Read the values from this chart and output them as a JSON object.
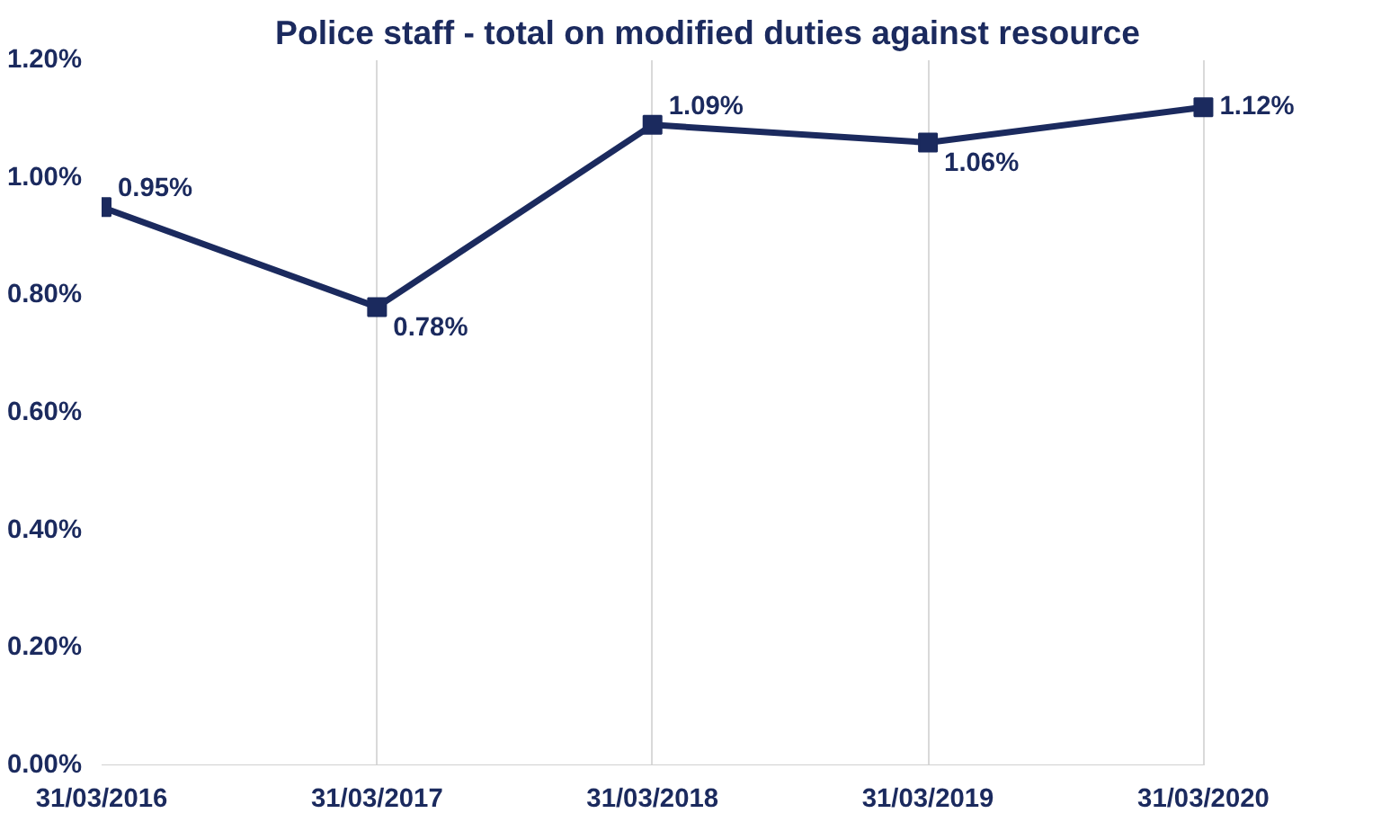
{
  "chart_data": {
    "type": "line",
    "title": "Police staff - total on modified duties against resource",
    "categories": [
      "31/03/2016",
      "31/03/2017",
      "31/03/2018",
      "31/03/2019",
      "31/03/2020"
    ],
    "series": [
      {
        "color": "#1b2a5e",
        "values": [
          0.95,
          0.78,
          1.09,
          1.06,
          1.12
        ],
        "value_labels": [
          "0.95%",
          "0.78%",
          "1.09%",
          "1.06%",
          "1.12%"
        ]
      }
    ],
    "ylim": [
      0,
      1.2
    ],
    "yticks": [
      {
        "value": 0,
        "label": "0.00%"
      },
      {
        "value": 0.2,
        "label": "0.20%"
      },
      {
        "value": 0.4,
        "label": "0.40%"
      },
      {
        "value": 0.6,
        "label": "0.60%"
      },
      {
        "value": 0.8,
        "label": "0.80%"
      },
      {
        "value": 1.0,
        "label": "1.00%"
      },
      {
        "value": 1.2,
        "label": "1.20%"
      }
    ],
    "grid": "x",
    "marker": "square",
    "line_style": "solid"
  }
}
